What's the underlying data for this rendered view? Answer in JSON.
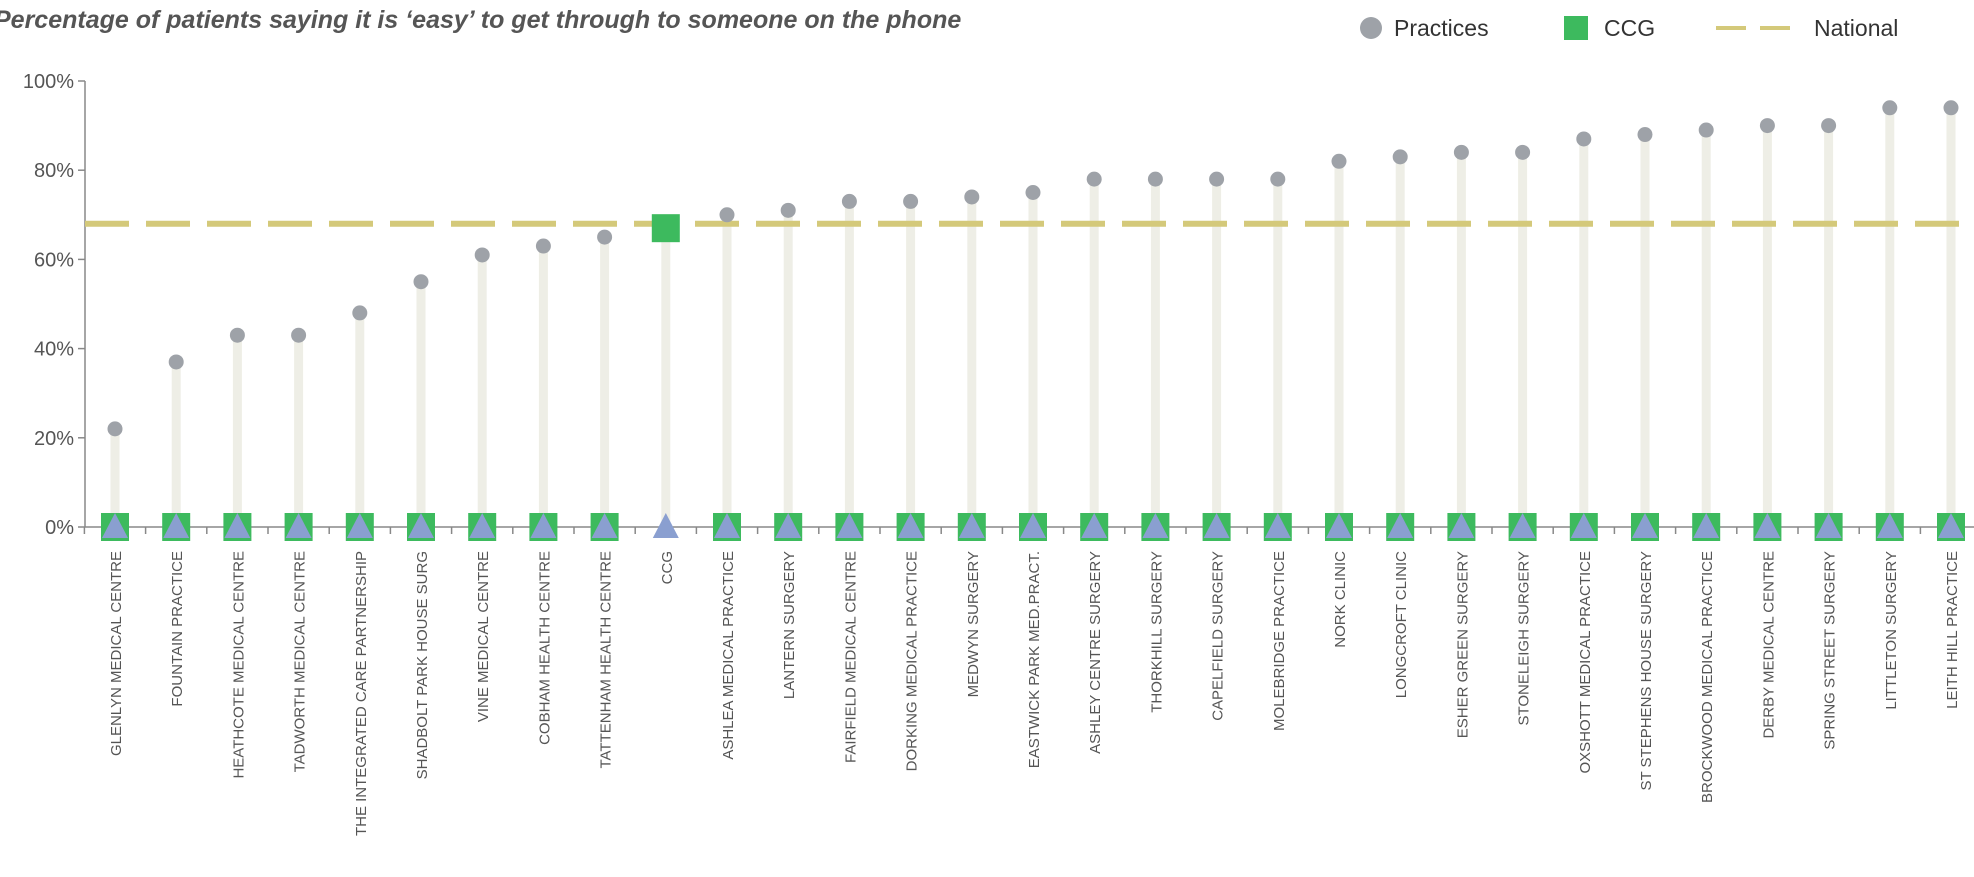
{
  "chart_data": {
    "type": "scatter",
    "title": "Percentage of patients saying it is ‘easy’ to get through to someone on the phone",
    "xlabel": "",
    "ylabel": "",
    "ylim": [
      0,
      100
    ],
    "yticks": [
      "0%",
      "20%",
      "40%",
      "60%",
      "80%",
      "100%"
    ],
    "grid": false,
    "legend_position": "top-right",
    "legend": [
      {
        "name": "Practices",
        "marker": "circle",
        "color": "#9ea2a8"
      },
      {
        "name": "CCG",
        "marker": "square",
        "color": "#3dba5e"
      },
      {
        "name": "National",
        "marker": "dashed-line",
        "color": "#d4c97a"
      }
    ],
    "categories": [
      "GLENLYN MEDICAL CENTRE",
      "FOUNTAIN PRACTICE",
      "HEATHCOTE MEDICAL CENTRE",
      "TADWORTH MEDICAL CENTRE",
      "THE INTEGRATED CARE PARTNERSHIP",
      "SHADBOLT PARK HOUSE SURG",
      "VINE MEDICAL CENTRE",
      "COBHAM HEALTH CENTRE",
      "TATTENHAM HEALTH CENTRE",
      "CCG",
      "ASHLEA MEDICAL PRACTICE",
      "LANTERN SURGERY",
      "FAIRFIELD MEDICAL CENTRE",
      "DORKING MEDICAL PRACTICE",
      "MEDWYN SURGERY",
      "EASTWICK PARK MED.PRACT.",
      "ASHLEY CENTRE SURGERY",
      "THORKHILL SURGERY",
      "CAPELFIELD SURGERY",
      "MOLEBRIDGE PRACTICE",
      "NORK CLINIC",
      "LONGCROFT CLINIC",
      "ESHER GREEN SURGERY",
      "STONELEIGH SURGERY",
      "OXSHOTT MEDICAL PRACTICE",
      "ST STEPHENS HOUSE SURGERY",
      "BROCKWOOD MEDICAL PRACTICE",
      "DERBY MEDICAL CENTRE",
      "SPRING STREET SURGERY",
      "LITTLETON SURGERY",
      "LEITH HILL PRACTICE"
    ],
    "series": [
      {
        "name": "Practices",
        "values": [
          22,
          37,
          43,
          43,
          48,
          55,
          61,
          63,
          65,
          null,
          70,
          71,
          73,
          73,
          74,
          75,
          78,
          78,
          78,
          78,
          82,
          83,
          84,
          84,
          87,
          88,
          89,
          90,
          90,
          94,
          94
        ]
      },
      {
        "name": "CCG",
        "values": [
          null,
          null,
          null,
          null,
          null,
          null,
          null,
          null,
          null,
          67,
          null,
          null,
          null,
          null,
          null,
          null,
          null,
          null,
          null,
          null,
          null,
          null,
          null,
          null,
          null,
          null,
          null,
          null,
          null,
          null,
          null
        ]
      },
      {
        "name": "National",
        "value": 68
      }
    ],
    "baseline_markers": {
      "square_color": "#3dba5e",
      "triangle_color": "#8a9fd0"
    },
    "colors": {
      "stem": "#eeeee6",
      "axis": "#888888"
    }
  }
}
